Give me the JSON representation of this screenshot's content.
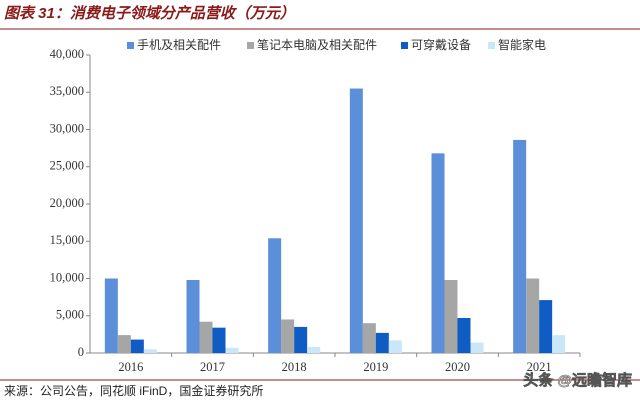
{
  "chart_data": {
    "type": "bar",
    "title": "图表 31：消费电子领域分产品营收（万元）",
    "categories": [
      "2016",
      "2017",
      "2018",
      "2019",
      "2020",
      "2021"
    ],
    "series": [
      {
        "name": "手机及相关配件",
        "color": "#5b8fd9",
        "values": [
          10000,
          9800,
          15400,
          35500,
          26800,
          28600
        ]
      },
      {
        "name": "笔记本电脑及相关配件",
        "color": "#a6a6a6",
        "values": [
          2400,
          4200,
          4500,
          4000,
          9800,
          10000
        ]
      },
      {
        "name": "可穿戴设备",
        "color": "#0e5cc4",
        "values": [
          1800,
          3400,
          3500,
          2700,
          4700,
          7100
        ]
      },
      {
        "name": "智能家电",
        "color": "#c9e7f8",
        "values": [
          500,
          700,
          800,
          1700,
          1400,
          2400
        ]
      }
    ],
    "ylim": [
      0,
      40000
    ],
    "yticks": [
      0,
      {
        "value": 5000,
        "label": "5,000"
      },
      {
        "value": 10000,
        "label": "10,000"
      },
      {
        "value": 15000,
        "label": "15,000"
      },
      {
        "value": 20000,
        "label": "20,000"
      },
      {
        "value": 25000,
        "label": "25,000"
      },
      {
        "value": 30000,
        "label": "30,000"
      },
      {
        "value": 35000,
        "label": "35,000"
      },
      {
        "value": 40000,
        "label": "40,000"
      }
    ],
    "grid": false,
    "legend": "top",
    "source": "来源：公司公告，同花顺 iFinD，国金证券研究所",
    "watermark": "头条 @远瞻智库"
  }
}
